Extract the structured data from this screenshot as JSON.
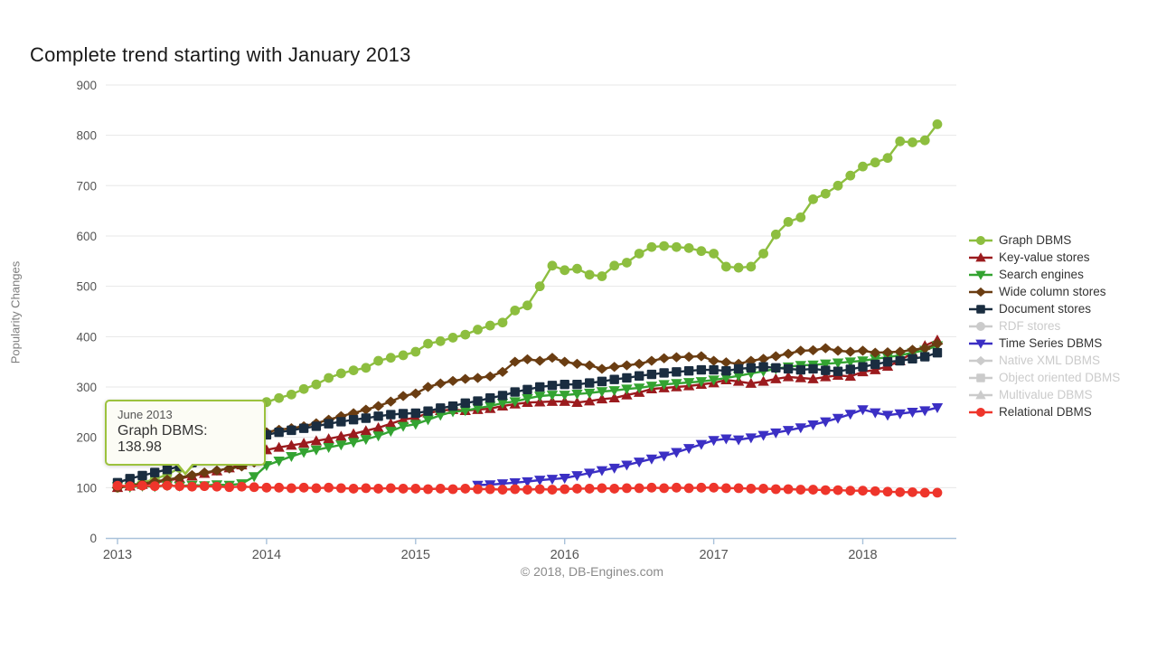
{
  "title": "Complete trend starting with January 2013",
  "footer": "© 2018, DB-Engines.com",
  "tooltip": {
    "date": "June 2013",
    "series": "Graph DBMS",
    "value_label": "Graph DBMS: 138.98"
  },
  "colors": {
    "disabled": "#cbcbcb",
    "axis_line": "#a9c2da",
    "grid_line": "#e7e7e7",
    "tick_label": "#555555",
    "tooltip_border": "#9cc23d"
  },
  "chart_data": {
    "type": "line",
    "title": "Complete trend starting with January 2013",
    "xlabel": "",
    "ylabel": "Popularity Changes",
    "x_interval": "monthly",
    "x_start": "2013-01",
    "x_end": "2018-07",
    "x_tick_labels": [
      "2013",
      "2014",
      "2015",
      "2016",
      "2017",
      "2018"
    ],
    "ylim": [
      0,
      900
    ],
    "y_ticks": [
      0,
      100,
      200,
      300,
      400,
      500,
      600,
      700,
      800,
      900
    ],
    "grid": "horizontal",
    "legend_position": "right",
    "series": [
      {
        "name": "Graph DBMS",
        "color": "#8dbe3f",
        "marker": "circle",
        "visible": true,
        "values": [
          100,
          104,
          110,
          117,
          126,
          139,
          149,
          160,
          172,
          185,
          198,
          212,
          270,
          278,
          285,
          296,
          305,
          318,
          327,
          333,
          338,
          352,
          358,
          363,
          370,
          386,
          391,
          398,
          404,
          414,
          422,
          428,
          452,
          462,
          500,
          541,
          532,
          535,
          523,
          520,
          541,
          547,
          565,
          578,
          580,
          578,
          576,
          570,
          565,
          539,
          537,
          539,
          565,
          603,
          628,
          637,
          673,
          684,
          700,
          720,
          738,
          746,
          755,
          788,
          786,
          790,
          822
        ]
      },
      {
        "name": "Key-value stores",
        "color": "#9b1b1e",
        "marker": "triangle-up",
        "visible": true,
        "values": [
          100,
          103,
          106,
          110,
          114,
          118,
          123,
          128,
          133,
          139,
          145,
          152,
          175,
          180,
          184,
          188,
          193,
          197,
          202,
          207,
          213,
          219,
          227,
          235,
          239,
          248,
          253,
          255,
          253,
          255,
          257,
          262,
          266,
          269,
          270,
          271,
          271,
          269,
          272,
          276,
          278,
          284,
          289,
          296,
          298,
          300,
          302,
          305,
          308,
          314,
          311,
          307,
          311,
          316,
          320,
          318,
          316,
          320,
          323,
          321,
          330,
          334,
          341,
          352,
          368,
          382,
          393
        ]
      },
      {
        "name": "Search engines",
        "color": "#33a331",
        "marker": "triangle-down",
        "visible": true,
        "values": [
          102,
          101,
          103,
          102,
          104,
          103,
          105,
          104,
          106,
          105,
          108,
          122,
          144,
          153,
          162,
          170,
          175,
          180,
          185,
          190,
          196,
          203,
          212,
          222,
          226,
          235,
          244,
          251,
          253,
          258,
          262,
          268,
          271,
          277,
          282,
          284,
          284,
          286,
          288,
          291,
          293,
          296,
          298,
          302,
          305,
          307,
          309,
          311,
          314,
          318,
          322,
          327,
          331,
          336,
          340,
          343,
          344,
          346,
          348,
          350,
          352,
          356,
          359,
          363,
          368,
          373,
          382
        ]
      },
      {
        "name": "Wide column stores",
        "color": "#6a3d12",
        "marker": "diamond",
        "visible": true,
        "values": [
          100,
          104,
          108,
          112,
          116,
          120,
          125,
          130,
          134,
          138,
          142,
          150,
          210,
          215,
          218,
          222,
          228,
          235,
          242,
          248,
          255,
          262,
          271,
          282,
          287,
          300,
          307,
          312,
          316,
          318,
          321,
          330,
          350,
          355,
          352,
          358,
          350,
          346,
          343,
          336,
          340,
          343,
          346,
          352,
          357,
          359,
          360,
          361,
          352,
          349,
          346,
          352,
          356,
          361,
          366,
          372,
          373,
          377,
          372,
          370,
          372,
          368,
          369,
          370,
          374,
          377,
          386
        ]
      },
      {
        "name": "Document stores",
        "color": "#1a2d40",
        "marker": "square",
        "visible": true,
        "values": [
          110,
          118,
          124,
          130,
          136,
          142,
          150,
          156,
          160,
          163,
          168,
          190,
          205,
          210,
          214,
          218,
          222,
          227,
          231,
          235,
          238,
          242,
          245,
          247,
          248,
          252,
          258,
          262,
          268,
          272,
          278,
          283,
          290,
          295,
          300,
          303,
          305,
          305,
          308,
          311,
          315,
          318,
          322,
          325,
          328,
          330,
          332,
          334,
          334,
          332,
          336,
          338,
          340,
          338,
          336,
          334,
          336,
          333,
          331,
          335,
          340,
          345,
          350,
          352,
          356,
          360,
          368
        ]
      },
      {
        "name": "RDF stores",
        "color": "#cbcbcb",
        "marker": "circle",
        "visible": false,
        "values": null
      },
      {
        "name": "Time Series DBMS",
        "color": "#3b2fc4",
        "marker": "triangle-down",
        "visible": true,
        "values": [
          null,
          null,
          null,
          null,
          null,
          null,
          null,
          null,
          null,
          null,
          null,
          null,
          null,
          null,
          null,
          null,
          null,
          null,
          null,
          null,
          null,
          null,
          null,
          null,
          null,
          null,
          null,
          null,
          null,
          105,
          106,
          108,
          110,
          112,
          115,
          117,
          119,
          124,
          129,
          134,
          139,
          145,
          151,
          157,
          163,
          170,
          178,
          186,
          194,
          197,
          195,
          199,
          204,
          209,
          214,
          219,
          225,
          231,
          238,
          246,
          255,
          249,
          244,
          247,
          250,
          253,
          259
        ]
      },
      {
        "name": "Native XML DBMS",
        "color": "#cbcbcb",
        "marker": "diamond",
        "visible": false,
        "values": null
      },
      {
        "name": "Object oriented DBMS",
        "color": "#cbcbcb",
        "marker": "square",
        "visible": false,
        "values": null
      },
      {
        "name": "Multivalue DBMS",
        "color": "#cbcbcb",
        "marker": "triangle-up",
        "visible": false,
        "values": null
      },
      {
        "name": "Relational DBMS",
        "color": "#ee352b",
        "marker": "circle",
        "visible": true,
        "values": [
          104,
          103,
          104,
          103,
          104,
          103,
          102,
          103,
          102,
          101,
          102,
          101,
          100,
          100,
          99,
          100,
          99,
          100,
          99,
          98,
          99,
          98,
          99,
          98,
          98,
          97,
          98,
          97,
          98,
          97,
          97,
          96,
          97,
          96,
          97,
          96,
          97,
          98,
          98,
          99,
          98,
          99,
          99,
          100,
          99,
          100,
          99,
          100,
          100,
          99,
          99,
          98,
          98,
          97,
          97,
          96,
          96,
          95,
          95,
          94,
          94,
          93,
          92,
          91,
          91,
          90,
          90
        ]
      }
    ]
  }
}
